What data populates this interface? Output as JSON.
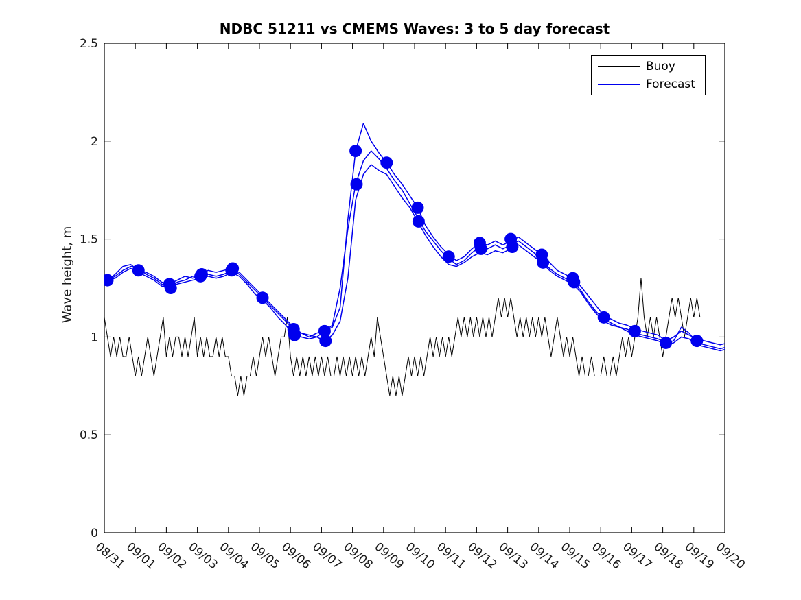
{
  "title": "NDBC 51211 vs CMEMS Waves: 3 to 5 day forecast",
  "legend": {
    "items": [
      {
        "label": "Buoy",
        "color": "#000000"
      },
      {
        "label": "Forecast",
        "color": "#0000ee"
      }
    ]
  },
  "chart_data": {
    "type": "line",
    "title": "NDBC 51211 vs CMEMS Waves: 3 to 5 day forecast",
    "xlabel": "",
    "ylabel": "Wave height, m",
    "ylim": [
      0,
      2.5
    ],
    "xlim_days": [
      0,
      20
    ],
    "grid": false,
    "legend_position": "top-right-inside",
    "x_tick_labels": [
      "08/31",
      "09/01",
      "09/02",
      "09/03",
      "09/04",
      "09/05",
      "09/06",
      "09/07",
      "09/08",
      "09/09",
      "09/10",
      "09/11",
      "09/12",
      "09/13",
      "09/14",
      "09/15",
      "09/16",
      "09/17",
      "09/18",
      "09/19",
      "09/20"
    ],
    "y_tick_values": [
      0,
      0.5,
      1,
      1.5,
      2,
      2.5
    ],
    "y_tick_labels": [
      "0",
      "0.5",
      "1",
      "1.5",
      "2",
      "2.5"
    ],
    "colors": {
      "buoy": "#000000",
      "forecast": "#0000ee",
      "marker": "#0000ee"
    },
    "buoy": {
      "name": "Buoy",
      "x0": 0,
      "dx": 0.1,
      "values": [
        1.1,
        1.0,
        0.9,
        1.0,
        0.9,
        1.0,
        0.9,
        0.9,
        1.0,
        0.9,
        0.8,
        0.9,
        0.8,
        0.9,
        1.0,
        0.9,
        0.8,
        0.9,
        1.0,
        1.1,
        0.9,
        1.0,
        0.9,
        1.0,
        1.0,
        0.9,
        1.0,
        0.9,
        1.0,
        1.1,
        0.9,
        1.0,
        0.9,
        1.0,
        0.9,
        0.9,
        1.0,
        0.9,
        1.0,
        0.9,
        0.9,
        0.8,
        0.8,
        0.7,
        0.8,
        0.7,
        0.8,
        0.8,
        0.9,
        0.8,
        0.9,
        1.0,
        0.9,
        1.0,
        0.9,
        0.8,
        0.9,
        1.0,
        1.0,
        1.1,
        0.9,
        0.8,
        0.9,
        0.8,
        0.9,
        0.8,
        0.9,
        0.8,
        0.9,
        0.8,
        0.9,
        0.8,
        0.9,
        0.8,
        0.8,
        0.9,
        0.8,
        0.9,
        0.8,
        0.9,
        0.8,
        0.9,
        0.8,
        0.9,
        0.8,
        0.9,
        1.0,
        0.9,
        1.1,
        1.0,
        0.9,
        0.8,
        0.7,
        0.8,
        0.7,
        0.8,
        0.7,
        0.8,
        0.9,
        0.8,
        0.9,
        0.8,
        0.9,
        0.8,
        0.9,
        1.0,
        0.9,
        1.0,
        0.9,
        1.0,
        0.9,
        1.0,
        0.9,
        1.0,
        1.1,
        1.0,
        1.1,
        1.0,
        1.1,
        1.0,
        1.1,
        1.0,
        1.1,
        1.0,
        1.1,
        1.0,
        1.1,
        1.2,
        1.1,
        1.2,
        1.1,
        1.2,
        1.1,
        1.0,
        1.1,
        1.0,
        1.1,
        1.0,
        1.1,
        1.0,
        1.1,
        1.0,
        1.1,
        1.0,
        0.9,
        1.0,
        1.1,
        1.0,
        0.9,
        1.0,
        0.9,
        1.0,
        0.9,
        0.8,
        0.9,
        0.8,
        0.8,
        0.9,
        0.8,
        0.8,
        0.8,
        0.9,
        0.8,
        0.8,
        0.9,
        0.8,
        0.9,
        1.0,
        0.9,
        1.0,
        0.9,
        1.0,
        1.1,
        1.3,
        1.1,
        1.0,
        1.1,
        1.0,
        1.1,
        1.0,
        0.9,
        1.0,
        1.1,
        1.2,
        1.1,
        1.2,
        1.1,
        1.0,
        1.1,
        1.2,
        1.1,
        1.2,
        1.1
      ]
    },
    "forecast_lines": {
      "x0": 0.1,
      "dx": 0.25,
      "series": [
        {
          "name": "forecast-3day",
          "values": [
            1.29,
            1.32,
            1.36,
            1.37,
            1.34,
            1.33,
            1.31,
            1.28,
            1.27,
            1.29,
            1.31,
            1.3,
            1.32,
            1.34,
            1.33,
            1.34,
            1.35,
            1.32,
            1.28,
            1.24,
            1.2,
            1.16,
            1.12,
            1.08,
            1.04,
            1.02,
            1.0,
            1.02,
            1.03,
            1.05,
            1.15,
            1.6,
            1.95,
            2.09,
            2.0,
            1.94,
            1.89,
            1.83,
            1.78,
            1.72,
            1.66,
            1.57,
            1.51,
            1.46,
            1.42,
            1.39,
            1.41,
            1.45,
            1.48,
            1.47,
            1.49,
            1.47,
            1.49,
            1.51,
            1.48,
            1.45,
            1.42,
            1.38,
            1.34,
            1.32,
            1.3,
            1.26,
            1.21,
            1.16,
            1.11,
            1.09,
            1.07,
            1.06,
            1.04,
            1.03,
            1.02,
            1.01,
            0.98,
            1.0,
            1.03,
            1.01,
            0.99,
            0.98,
            0.97,
            0.96,
            0.97
          ]
        },
        {
          "name": "forecast-4day",
          "values": [
            1.29,
            1.31,
            1.34,
            1.36,
            1.35,
            1.32,
            1.3,
            1.27,
            1.25,
            1.28,
            1.29,
            1.31,
            1.31,
            1.32,
            1.31,
            1.32,
            1.34,
            1.33,
            1.29,
            1.25,
            1.21,
            1.17,
            1.13,
            1.09,
            1.05,
            1.02,
            1.01,
            1.0,
            1.03,
            1.06,
            1.25,
            1.55,
            1.78,
            1.9,
            1.95,
            1.91,
            1.86,
            1.8,
            1.75,
            1.68,
            1.61,
            1.54,
            1.49,
            1.44,
            1.4,
            1.37,
            1.39,
            1.43,
            1.46,
            1.45,
            1.47,
            1.45,
            1.47,
            1.49,
            1.46,
            1.43,
            1.39,
            1.35,
            1.32,
            1.3,
            1.28,
            1.24,
            1.18,
            1.13,
            1.09,
            1.07,
            1.05,
            1.04,
            1.02,
            1.01,
            1.0,
            0.99,
            0.97,
            0.98,
            1.05,
            1.02,
            0.97,
            0.96,
            0.95,
            0.94,
            0.95
          ]
        },
        {
          "name": "forecast-5day",
          "values": [
            1.29,
            1.3,
            1.33,
            1.35,
            1.33,
            1.31,
            1.29,
            1.26,
            1.25,
            1.27,
            1.28,
            1.29,
            1.3,
            1.31,
            1.3,
            1.31,
            1.33,
            1.31,
            1.27,
            1.22,
            1.19,
            1.15,
            1.1,
            1.06,
            1.01,
            1.0,
            0.99,
            1.0,
            0.98,
            1.01,
            1.08,
            1.3,
            1.7,
            1.83,
            1.88,
            1.85,
            1.83,
            1.77,
            1.71,
            1.66,
            1.59,
            1.52,
            1.46,
            1.41,
            1.37,
            1.36,
            1.38,
            1.41,
            1.43,
            1.42,
            1.44,
            1.43,
            1.45,
            1.47,
            1.44,
            1.41,
            1.38,
            1.34,
            1.31,
            1.29,
            1.27,
            1.23,
            1.17,
            1.12,
            1.08,
            1.06,
            1.05,
            1.03,
            1.01,
            1.0,
            0.99,
            0.98,
            0.96,
            0.97,
            1.0,
            0.99,
            0.96,
            0.95,
            0.94,
            0.93,
            0.94
          ]
        }
      ]
    },
    "forecast_markers": [
      [
        0.1,
        1.29
      ],
      [
        1.1,
        1.34
      ],
      [
        2.1,
        1.27
      ],
      [
        2.14,
        1.25
      ],
      [
        3.1,
        1.31
      ],
      [
        3.14,
        1.32
      ],
      [
        4.1,
        1.34
      ],
      [
        4.14,
        1.35
      ],
      [
        5.1,
        1.2
      ],
      [
        6.1,
        1.04
      ],
      [
        6.13,
        1.01
      ],
      [
        7.1,
        1.03
      ],
      [
        7.13,
        0.98
      ],
      [
        8.1,
        1.95
      ],
      [
        8.13,
        1.78
      ],
      [
        9.1,
        1.89
      ],
      [
        10.1,
        1.66
      ],
      [
        10.13,
        1.59
      ],
      [
        11.1,
        1.41
      ],
      [
        12.1,
        1.48
      ],
      [
        12.14,
        1.45
      ],
      [
        13.1,
        1.5
      ],
      [
        13.15,
        1.46
      ],
      [
        14.1,
        1.42
      ],
      [
        14.14,
        1.38
      ],
      [
        15.1,
        1.3
      ],
      [
        15.14,
        1.28
      ],
      [
        16.1,
        1.1
      ],
      [
        17.1,
        1.03
      ],
      [
        18.1,
        0.97
      ],
      [
        19.1,
        0.98
      ]
    ]
  }
}
